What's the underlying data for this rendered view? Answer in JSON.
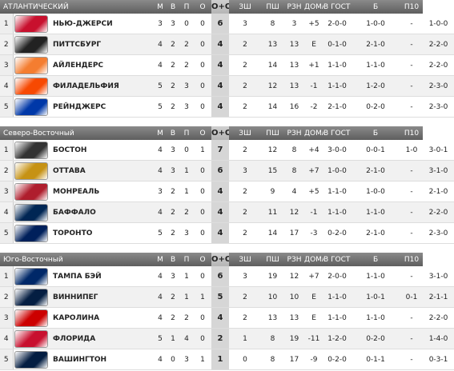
{
  "tables": [
    {
      "header": [
        "АТЛАНТИЧЕСКИЙ",
        "М",
        "В",
        "П",
        "О",
        "О+ОТ",
        "ЗШ",
        "ПШ",
        "РЗН",
        "ДОМА",
        "В ГОСТЯХ",
        "Б",
        "П10"
      ],
      "rows": [
        [
          1,
          "НЬЮ-ДЖЕРСИ",
          3,
          3,
          0,
          0,
          6,
          3,
          8,
          3,
          "+5",
          "2-0-0",
          "1-0-0",
          "-",
          "1-0-0"
        ],
        [
          2,
          "ПИТТСБУРГ",
          4,
          2,
          2,
          0,
          4,
          2,
          13,
          13,
          "E",
          "0-1-0",
          "2-1-0",
          "-",
          "2-2-0"
        ],
        [
          3,
          "АЙЛЕНДЕРС",
          4,
          2,
          2,
          0,
          4,
          2,
          14,
          13,
          "+1",
          "1-1-0",
          "1-1-0",
          "-",
          "2-2-0"
        ],
        [
          4,
          "ФИЛАДЕЛЬФИЯ",
          5,
          2,
          3,
          0,
          4,
          2,
          12,
          13,
          "-1",
          "1-1-0",
          "1-2-0",
          "-",
          "2-3-0"
        ],
        [
          5,
          "РЕЙНДЖЕРС",
          5,
          2,
          3,
          0,
          4,
          2,
          14,
          16,
          "-2",
          "2-1-0",
          "0-2-0",
          "-",
          "2-3-0"
        ]
      ]
    },
    {
      "header": [
        "Северо-Восточный",
        "М",
        "В",
        "П",
        "О",
        "О+ОТ",
        "ЗШ",
        "ПШ",
        "РЗН",
        "ДОМА",
        "В ГОСТЯХ",
        "Б",
        "П10"
      ],
      "rows": [
        [
          1,
          "БОСТОН",
          4,
          3,
          0,
          1,
          7,
          2,
          12,
          8,
          "+4",
          "3-0-0",
          "0-0-1",
          "1-0",
          "3-0-1"
        ],
        [
          2,
          "ОТТАВА",
          4,
          3,
          1,
          0,
          6,
          3,
          15,
          8,
          "+7",
          "1-0-0",
          "2-1-0",
          "-",
          "3-1-0"
        ],
        [
          3,
          "МОНРЕАЛЬ",
          3,
          2,
          1,
          0,
          4,
          2,
          9,
          4,
          "+5",
          "1-1-0",
          "1-0-0",
          "-",
          "2-1-0"
        ],
        [
          4,
          "БАФФАЛО",
          4,
          2,
          2,
          0,
          4,
          2,
          11,
          12,
          "-1",
          "1-1-0",
          "1-1-0",
          "-",
          "2-2-0"
        ],
        [
          5,
          "ТОРОНТО",
          5,
          2,
          3,
          0,
          4,
          2,
          14,
          17,
          "-3",
          "0-2-0",
          "2-1-0",
          "-",
          "2-3-0"
        ]
      ]
    },
    {
      "header": [
        "Юго-Восточный",
        "М",
        "В",
        "П",
        "О",
        "О+ОТ",
        "ЗШ",
        "ПШ",
        "РЗН",
        "ДОМА",
        "В ГОСТЯХ",
        "Б",
        "П10"
      ],
      "rows": [
        [
          1,
          "ТАМПА БЭЙ",
          4,
          3,
          1,
          0,
          6,
          3,
          19,
          12,
          "+7",
          "2-0-0",
          "1-1-0",
          "-",
          "3-1-0"
        ],
        [
          2,
          "ВИННИПЕГ",
          4,
          2,
          1,
          1,
          5,
          2,
          10,
          10,
          "E",
          "1-1-0",
          "1-0-1",
          "0-1",
          "2-1-1"
        ],
        [
          3,
          "КАРОЛИНА",
          4,
          2,
          2,
          0,
          4,
          2,
          13,
          13,
          "E",
          "1-1-0",
          "1-1-0",
          "-",
          "2-2-0"
        ],
        [
          4,
          "ФЛОРИДА",
          5,
          1,
          4,
          0,
          2,
          1,
          8,
          19,
          "-11",
          "1-2-0",
          "0-2-0",
          "-",
          "1-4-0"
        ],
        [
          5,
          "ВАШИНГТОН",
          4,
          0,
          3,
          1,
          1,
          0,
          8,
          17,
          "-9",
          "0-2-0",
          "0-1-1",
          "-",
          "0-3-1"
        ]
      ]
    }
  ]
}
